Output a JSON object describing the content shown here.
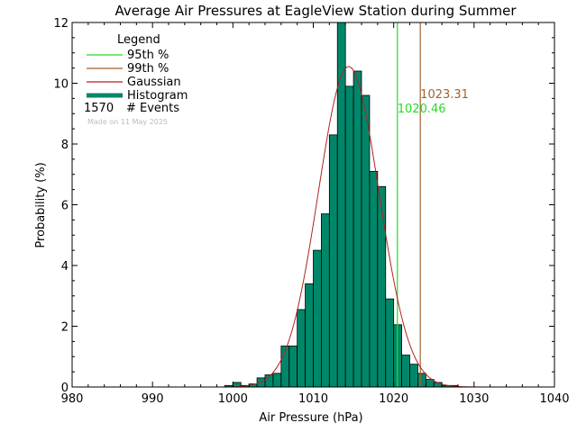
{
  "chart_data": {
    "type": "bar",
    "title": "Average Air Pressures at EagleView Station during Summer",
    "xlabel": "Air Pressure (hPa)",
    "ylabel": "Probability (%)",
    "xlim": [
      980,
      1040
    ],
    "ylim": [
      0,
      12
    ],
    "xticks": [
      "980",
      "990",
      "1000",
      "1010",
      "1020",
      "1030",
      "1040"
    ],
    "yticks": [
      "0",
      "2",
      "4",
      "6",
      "8",
      "10",
      "12"
    ],
    "bin_width": 1,
    "histogram": {
      "name": "Histogram",
      "color": "#00876a",
      "x": [
        999,
        1000,
        1001,
        1002,
        1003,
        1004,
        1005,
        1006,
        1007,
        1008,
        1009,
        1010,
        1011,
        1012,
        1013,
        1014,
        1015,
        1016,
        1017,
        1018,
        1019,
        1020,
        1021,
        1022,
        1023,
        1024,
        1025,
        1026,
        1027
      ],
      "values": [
        0.05,
        0.15,
        0.05,
        0.1,
        0.3,
        0.4,
        0.45,
        1.35,
        1.35,
        2.55,
        3.4,
        4.5,
        5.7,
        8.3,
        12.3,
        9.9,
        10.4,
        9.6,
        7.1,
        6.6,
        2.9,
        2.05,
        1.05,
        0.75,
        0.45,
        0.25,
        0.15,
        0.05,
        0.05
      ]
    },
    "gaussian": {
      "name": "Gaussian",
      "color": "#b22222",
      "mean": 1014.4,
      "sigma": 3.78,
      "peak": 10.55
    },
    "percentiles": [
      {
        "name": "95th %",
        "value": 1020.46,
        "label": "1020.46",
        "color": "#22dd22"
      },
      {
        "name": "99th %",
        "value": 1023.31,
        "label": "1023.31",
        "color": "#a0622d"
      }
    ],
    "legend": {
      "title": "Legend",
      "entries": [
        {
          "label": "95th %",
          "color": "#22dd22",
          "style": "line"
        },
        {
          "label": "99th %",
          "color": "#a0622d",
          "style": "line"
        },
        {
          "label": "Gaussian",
          "color": "#b22222",
          "style": "line"
        },
        {
          "label": "Histogram",
          "color": "#00876a",
          "style": "thick"
        }
      ],
      "events_count": "1570",
      "events_label": "# Events",
      "made_on": "Made on 11 May 2025"
    }
  }
}
